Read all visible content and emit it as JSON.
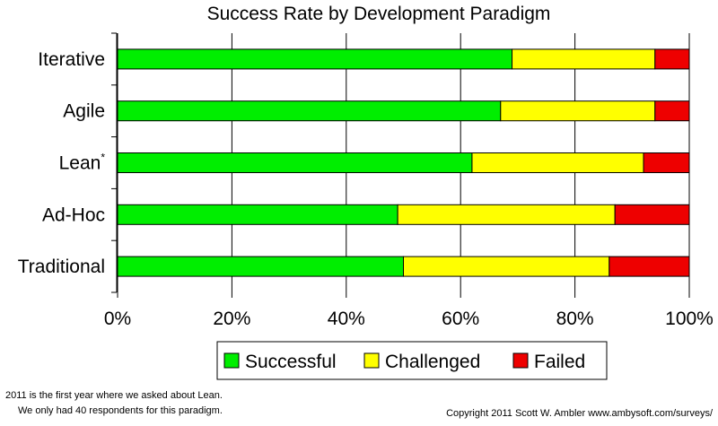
{
  "chart_data": {
    "type": "bar",
    "orientation": "horizontal",
    "stacked": true,
    "title": "Success Rate by Development Paradigm",
    "categories": [
      "Iterative",
      "Agile",
      "Lean",
      "Ad-Hoc",
      "Traditional"
    ],
    "category_marks": [
      "",
      "",
      "*",
      "",
      ""
    ],
    "series": [
      {
        "name": "Successful",
        "color": "#00ee00",
        "values": [
          69,
          67,
          62,
          49,
          50
        ]
      },
      {
        "name": "Challenged",
        "color": "#ffff00",
        "values": [
          25,
          27,
          30,
          38,
          36
        ]
      },
      {
        "name": "Failed",
        "color": "#ee0000",
        "values": [
          6,
          6,
          8,
          13,
          14
        ]
      }
    ],
    "xlim": [
      0,
      100
    ],
    "xticks": [
      "0%",
      "20%",
      "40%",
      "60%",
      "80%",
      "100%"
    ],
    "grid": true,
    "legend": "bottom"
  },
  "footnote": {
    "line1": "2011 is the first year where we asked about Lean.",
    "line2": "We only had 40 respondents for this paradigm."
  },
  "copyright": "Copyright 2011 Scott W. Ambler  www.ambysoft.com/surveys/"
}
